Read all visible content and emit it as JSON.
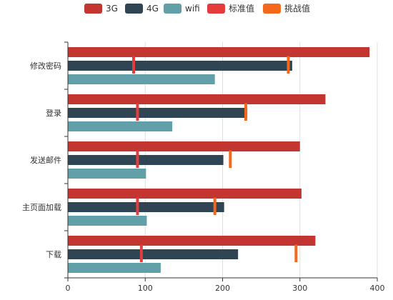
{
  "chart_data": {
    "type": "bar",
    "orientation": "horizontal",
    "categories": [
      "修改密码",
      "登录",
      "发送邮件",
      "主页面加载",
      "下载"
    ],
    "series": [
      {
        "name": "3G",
        "color": "#c23531",
        "values": [
          390,
          333,
          300,
          302,
          320
        ]
      },
      {
        "name": "4G",
        "color": "#2f4554",
        "values": [
          290,
          232,
          201,
          202,
          220
        ]
      },
      {
        "name": "wifi",
        "color": "#61a0a8",
        "values": [
          190,
          135,
          101,
          102,
          120
        ]
      }
    ],
    "markers": [
      {
        "name": "标准值",
        "color": "#e43c3c",
        "values": [
          85,
          90,
          90,
          90,
          95
        ]
      },
      {
        "name": "挑战值",
        "color": "#f4681c",
        "values": [
          285,
          230,
          210,
          190,
          295
        ]
      }
    ],
    "xlim": [
      0,
      400
    ],
    "xticks": [
      0,
      100,
      200,
      300,
      400
    ],
    "grid": "vertical",
    "legend_position": "top-center"
  }
}
